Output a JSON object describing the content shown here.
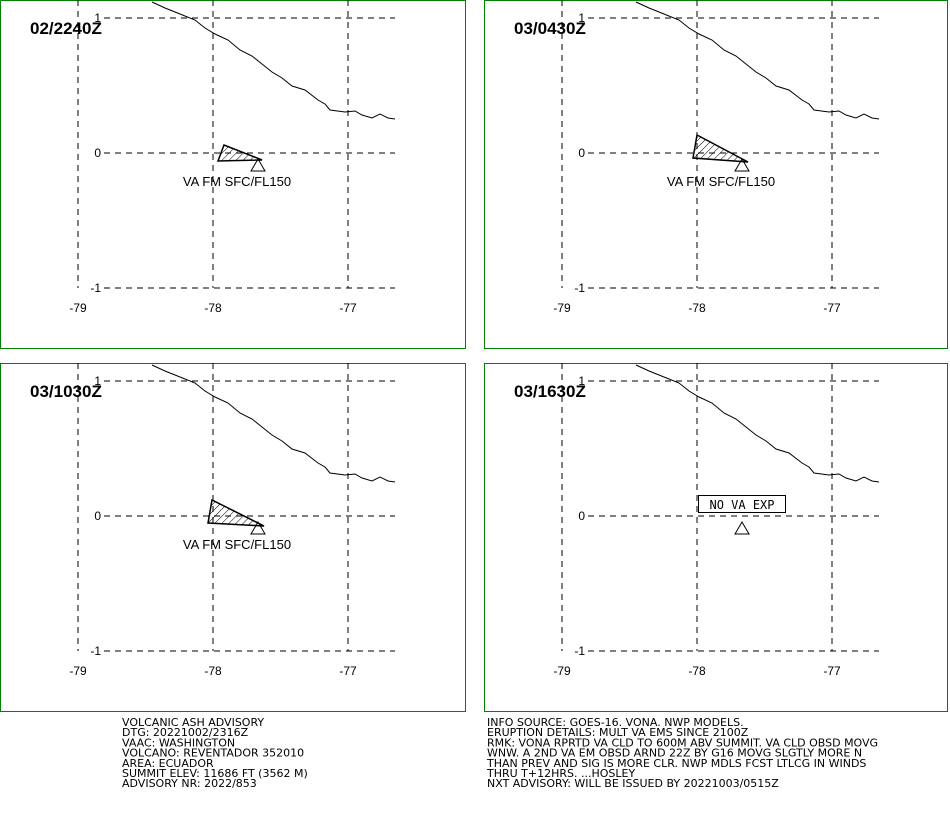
{
  "panels": [
    {
      "time": "02/2240Z",
      "label": "VA FM SFC/FL150"
    },
    {
      "time": "03/0430Z",
      "label": "VA FM SFC/FL150"
    },
    {
      "time": "03/1030Z",
      "label": "VA FM SFC/FL150"
    },
    {
      "time": "03/1630Z",
      "label": "NO VA EXP"
    }
  ],
  "lat_ticks": [
    1,
    0,
    -1
  ],
  "lon_ticks": [
    -79,
    -78,
    -77
  ],
  "advisory_left": [
    "VOLCANIC ASH ADVISORY",
    "DTG: 20221002/2316Z",
    "VAAC: WASHINGTON",
    "VOLCANO: REVENTADOR 352010",
    "AREA: ECUADOR",
    "SUMMIT ELEV: 11686 FT (3562 M)",
    "ADVISORY NR: 2022/853"
  ],
  "advisory_right": [
    "INFO SOURCE: GOES-16. VONA. NWP MODELS.",
    "ERUPTION DETAILS: MULT VA EMS SINCE 2100Z",
    "RMK: VONA RPRTD VA CLD TO 600M ABV SUMMIT. VA CLD OBSD MOVG",
    "WNW. A 2ND VA EM OBSD ARND 22Z BY G16 MOVG SLGTLY MORE N",
    "THAN PREV AND SIG IS MORE CLR. NWP MDLS FCST LTLCG IN WINDS",
    "THRU T+12HRS. ...HOSLEY",
    "NXT ADVISORY: WILL BE ISSUED BY 20221003/0515Z"
  ]
}
